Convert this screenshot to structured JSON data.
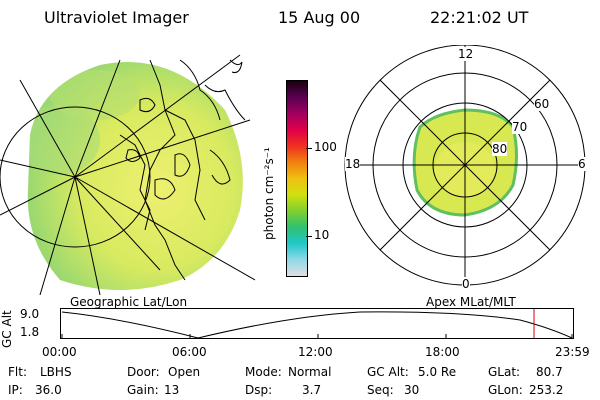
{
  "header": {
    "title": "Ultraviolet Imager",
    "date": "15 Aug 00",
    "time": "22:21:02 UT"
  },
  "colorbar": {
    "unit_label": "photon cm⁻²s⁻¹",
    "tick_100": "100",
    "tick_10": "10",
    "colors_top_to_bottom": [
      "#1a0010",
      "#5a0050",
      "#a00060",
      "#e0004a",
      "#f03020",
      "#f08010",
      "#f0c010",
      "#d0e010",
      "#80d030",
      "#30c070",
      "#20c8c8",
      "#90d8e8",
      "#e0e0e0"
    ]
  },
  "left_panel": {
    "label": "Geographic Lat/Lon"
  },
  "right_panel": {
    "label": "Apex MLat/MLT",
    "mlt_top": "12",
    "mlt_left": "18",
    "mlt_right": "6",
    "mlt_bottom": "0",
    "ring_60": "60",
    "ring_70": "70",
    "ring_80": "80"
  },
  "timeline": {
    "axis_label": "GC Alt",
    "ytick_top": "9.0",
    "ytick_bottom": "1.8",
    "xticks": [
      "00:00",
      "06:00",
      "12:00",
      "18:00",
      "23:59"
    ],
    "marker_color": "#e00000"
  },
  "info": {
    "flt_label": "Flt:",
    "flt_value": "LBHS",
    "ip_label": "IP:",
    "ip_value": "36.0",
    "door_label": "Door:",
    "door_value": "Open",
    "gain_label": "Gain:",
    "gain_value": "13",
    "mode_label": "Mode:",
    "mode_value": "Normal",
    "dsp_label": "Dsp:",
    "dsp_value": "3.7",
    "gcalt_label": "GC Alt:",
    "gcalt_value": "5.0 Re",
    "seq_label": "Seq:",
    "seq_value": "30",
    "glat_label": "GLat:",
    "glat_value": "80.7",
    "glon_label": "GLon:",
    "glon_value": "253.2"
  }
}
